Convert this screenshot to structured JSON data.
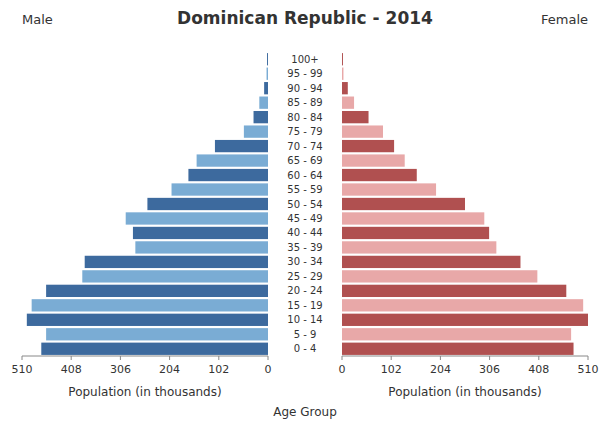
{
  "chart_data": {
    "type": "bar",
    "orientation": "horizontal",
    "title": "Dominican Republic - 2014",
    "xlabel_left": "Population (in thousands)",
    "xlabel_right": "Population (in thousands)",
    "ylabel": "Age Group",
    "categories": [
      "0 - 4",
      "5 - 9",
      "10 - 14",
      "15 - 19",
      "20 - 24",
      "25 - 29",
      "30 - 34",
      "35 - 39",
      "40 - 44",
      "45 - 49",
      "50 - 54",
      "55 - 59",
      "60 - 64",
      "65 - 69",
      "70 - 74",
      "75 - 79",
      "80 - 84",
      "85 - 89",
      "90 - 94",
      "95 - 99",
      "100+"
    ],
    "series": [
      {
        "name": "Male",
        "values": [
          470,
          460,
          500,
          490,
          460,
          385,
          380,
          275,
          280,
          295,
          250,
          200,
          165,
          148,
          110,
          50,
          30,
          18,
          8,
          3,
          2
        ],
        "colors": [
          "#3d6a9e",
          "#7aacd4",
          "#3d6a9e",
          "#7aacd4",
          "#3d6a9e",
          "#7aacd4",
          "#3d6a9e",
          "#7aacd4",
          "#3d6a9e",
          "#7aacd4",
          "#3d6a9e",
          "#7aacd4",
          "#3d6a9e",
          "#7aacd4",
          "#3d6a9e",
          "#7aacd4",
          "#3d6a9e",
          "#7aacd4",
          "#3d6a9e",
          "#7aacd4",
          "#3d6a9e"
        ]
      },
      {
        "name": "Female",
        "values": [
          480,
          475,
          510,
          500,
          465,
          405,
          370,
          320,
          305,
          295,
          255,
          195,
          155,
          130,
          108,
          85,
          55,
          25,
          12,
          3,
          2
        ],
        "colors": [
          "#b05050",
          "#e8a8a8",
          "#b05050",
          "#e8a8a8",
          "#b05050",
          "#e8a8a8",
          "#b05050",
          "#e8a8a8",
          "#b05050",
          "#e8a8a8",
          "#b05050",
          "#e8a8a8",
          "#b05050",
          "#e8a8a8",
          "#b05050",
          "#e8a8a8",
          "#b05050",
          "#e8a8a8",
          "#b05050",
          "#e8a8a8",
          "#b05050"
        ]
      }
    ],
    "xlim": [
      0,
      510
    ],
    "xticks": [
      0,
      102,
      204,
      306,
      408,
      510
    ],
    "grid": false
  }
}
